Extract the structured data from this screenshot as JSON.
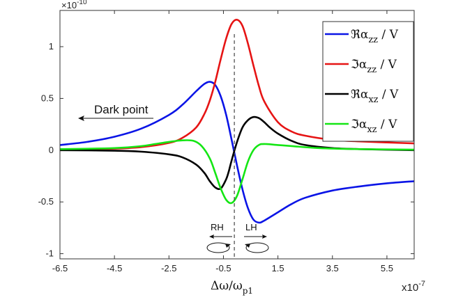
{
  "chart_data": {
    "type": "line",
    "xlabel": "Δω/ω",
    "xlabel_sub": "p1",
    "x_exponent": "x10",
    "x_exponent_power": "-7",
    "y_exponent": "×10",
    "y_exponent_power": "-10",
    "xlim": [
      -6.5,
      6.5
    ],
    "ylim": [
      -1.05,
      1.35
    ],
    "x_ticks": [
      -6.5,
      -4.5,
      -2.5,
      -0.5,
      1.5,
      3.5,
      5.5
    ],
    "x_tick_labels": [
      "-6.5",
      "-4.5",
      "-2.5",
      "-0.5",
      "1.5",
      "3.5",
      "5.5"
    ],
    "y_ticks": [
      -1,
      -0.5,
      0,
      0.5,
      1
    ],
    "y_tick_labels": [
      "-1",
      "-0.5",
      "0",
      "0.5",
      "1"
    ],
    "grid": false,
    "legend_position": "top-right",
    "series": [
      {
        "name": "ℜα",
        "sub": "zz",
        "suffix": " / V",
        "color": "#0a14e6",
        "x": [
          -6.5,
          -5.5,
          -4.5,
          -3.5,
          -2.5,
          -2.0,
          -1.5,
          -1.2,
          -1.0,
          -0.8,
          -0.6,
          -0.4,
          -0.2,
          0.0,
          0.2,
          0.4,
          0.6,
          0.8,
          1.0,
          1.5,
          2.0,
          2.5,
          3.5,
          4.5,
          5.5,
          6.5
        ],
        "values": [
          0.05,
          0.08,
          0.13,
          0.21,
          0.34,
          0.44,
          0.57,
          0.64,
          0.66,
          0.63,
          0.52,
          0.34,
          0.1,
          -0.15,
          -0.38,
          -0.56,
          -0.67,
          -0.7,
          -0.68,
          -0.6,
          -0.52,
          -0.46,
          -0.39,
          -0.35,
          -0.32,
          -0.3
        ]
      },
      {
        "name": "ℑα",
        "sub": "zz",
        "suffix": " / V",
        "color": "#e61414",
        "x": [
          -6.5,
          -5.5,
          -4.5,
          -3.5,
          -2.5,
          -2.0,
          -1.5,
          -1.2,
          -1.0,
          -0.8,
          -0.6,
          -0.4,
          -0.2,
          0.0,
          0.2,
          0.4,
          0.6,
          0.8,
          1.0,
          1.5,
          2.0,
          2.5,
          3.5,
          4.5,
          5.5,
          6.5
        ],
        "values": [
          0.0,
          0.01,
          0.015,
          0.03,
          0.07,
          0.12,
          0.22,
          0.35,
          0.48,
          0.66,
          0.88,
          1.08,
          1.22,
          1.26,
          1.2,
          1.03,
          0.82,
          0.62,
          0.47,
          0.27,
          0.18,
          0.14,
          0.1,
          0.085,
          0.075,
          0.065
        ]
      },
      {
        "name": "ℜα",
        "sub": "xz",
        "suffix": " / V",
        "color": "#000000",
        "x": [
          -6.5,
          -4.5,
          -3.5,
          -2.5,
          -2.0,
          -1.5,
          -1.2,
          -1.0,
          -0.8,
          -0.6,
          -0.4,
          -0.3,
          -0.2,
          0.0,
          0.2,
          0.4,
          0.6,
          0.8,
          1.0,
          1.2,
          1.5,
          2.0,
          2.5,
          3.5,
          4.5,
          6.5
        ],
        "values": [
          0.0,
          -0.005,
          -0.015,
          -0.04,
          -0.07,
          -0.14,
          -0.22,
          -0.3,
          -0.36,
          -0.37,
          -0.28,
          -0.2,
          -0.1,
          0.08,
          0.22,
          0.29,
          0.32,
          0.31,
          0.27,
          0.22,
          0.16,
          0.09,
          0.05,
          0.02,
          0.01,
          0.0
        ]
      },
      {
        "name": "ℑα",
        "sub": "xz",
        "suffix": " / V",
        "color": "#14e614",
        "x": [
          -6.5,
          -4.5,
          -3.5,
          -3.0,
          -2.5,
          -2.0,
          -1.6,
          -1.3,
          -1.0,
          -0.8,
          -0.6,
          -0.4,
          -0.2,
          0.0,
          0.2,
          0.4,
          0.6,
          0.8,
          1.0,
          1.5,
          2.0,
          3.0,
          4.5,
          6.5
        ],
        "values": [
          0.01,
          0.02,
          0.04,
          0.06,
          0.08,
          0.095,
          0.09,
          0.04,
          -0.08,
          -0.22,
          -0.37,
          -0.48,
          -0.51,
          -0.44,
          -0.28,
          -0.11,
          0.0,
          0.05,
          0.06,
          0.05,
          0.04,
          0.02,
          0.01,
          0.005
        ]
      }
    ],
    "vertical_line_x": -0.1
  },
  "annotations": {
    "dark_point": "Dark point",
    "rh": "RH",
    "lh": "LH"
  }
}
